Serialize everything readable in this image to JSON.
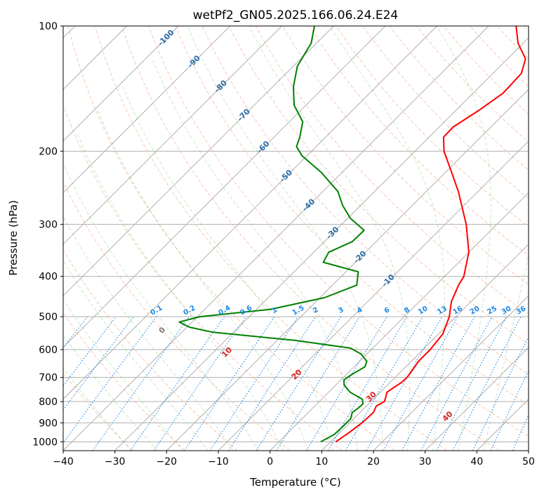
{
  "chart_data": {
    "type": "skew-t",
    "title": "wetPf2_GN05.2025.166.06.24.E24",
    "xlabel": "Temperature (°C)",
    "ylabel": "Pressure (hPa)",
    "xlim": [
      -40,
      50
    ],
    "ylim": [
      1050,
      100
    ],
    "y_scale": "log",
    "grid": true,
    "x_ticks": [
      -40,
      -30,
      -20,
      -10,
      0,
      10,
      20,
      30,
      40,
      50
    ],
    "y_ticks": [
      100,
      200,
      300,
      400,
      500,
      600,
      700,
      800,
      900,
      1000
    ],
    "isotherm_labels": [
      "-100",
      "-90",
      "-80",
      "-70",
      "-60",
      "-50",
      "-40",
      "-30",
      "-20",
      "-10"
    ],
    "mixing_ratio_labels": [
      "0.1",
      "0.2",
      "0.4",
      "0.6",
      "1",
      "1.5",
      "2",
      "3",
      "4",
      "6",
      "8",
      "10",
      "13",
      "16",
      "20",
      "25",
      "30",
      "36"
    ],
    "dry_adiabat_labels": [
      "0",
      "10",
      "20",
      "30",
      "40"
    ],
    "series": [
      {
        "color": "#ff0000",
        "points": [
          [
            1000,
            11.0
          ],
          [
            950,
            11.8
          ],
          [
            900,
            12.4
          ],
          [
            850,
            12.6
          ],
          [
            820,
            11.9
          ],
          [
            800,
            12.6
          ],
          [
            780,
            12.0
          ],
          [
            760,
            11.3
          ],
          [
            740,
            11.7
          ],
          [
            720,
            12.2
          ],
          [
            700,
            12.3
          ],
          [
            670,
            11.9
          ],
          [
            640,
            11.4
          ],
          [
            600,
            11.4
          ],
          [
            550,
            10.8
          ],
          [
            500,
            8.7
          ],
          [
            460,
            6.2
          ],
          [
            420,
            4.4
          ],
          [
            400,
            3.7
          ],
          [
            350,
            0.0
          ],
          [
            300,
            -5.9
          ],
          [
            250,
            -13.8
          ],
          [
            225,
            -18.8
          ],
          [
            200,
            -24.4
          ],
          [
            185,
            -27.2
          ],
          [
            175,
            -27.3
          ],
          [
            160,
            -25.6
          ],
          [
            145,
            -24.2
          ],
          [
            130,
            -24.5
          ],
          [
            120,
            -26.5
          ],
          [
            110,
            -31.0
          ],
          [
            100,
            -34.7
          ]
        ]
      },
      {
        "color": "#008000",
        "points": [
          [
            1000,
            8.1
          ],
          [
            960,
            9.3
          ],
          [
            920,
            9.4
          ],
          [
            880,
            9.4
          ],
          [
            850,
            8.5
          ],
          [
            830,
            8.8
          ],
          [
            810,
            8.9
          ],
          [
            790,
            7.9
          ],
          [
            760,
            4.2
          ],
          [
            730,
            1.6
          ],
          [
            710,
            0.6
          ],
          [
            690,
            1.0
          ],
          [
            660,
            2.1
          ],
          [
            640,
            1.4
          ],
          [
            615,
            -1.1
          ],
          [
            595,
            -4.3
          ],
          [
            570,
            -16.7
          ],
          [
            545,
            -34.0
          ],
          [
            530,
            -39.5
          ],
          [
            515,
            -42.5
          ],
          [
            500,
            -39.5
          ],
          [
            480,
            -27.3
          ],
          [
            450,
            -19.1
          ],
          [
            420,
            -15.3
          ],
          [
            390,
            -17.6
          ],
          [
            370,
            -26.2
          ],
          [
            350,
            -27.1
          ],
          [
            330,
            -24.6
          ],
          [
            310,
            -24.5
          ],
          [
            290,
            -29.5
          ],
          [
            270,
            -33.5
          ],
          [
            250,
            -37.1
          ],
          [
            225,
            -44.0
          ],
          [
            205,
            -51.0
          ],
          [
            195,
            -53.8
          ],
          [
            185,
            -55.0
          ],
          [
            170,
            -57.4
          ],
          [
            155,
            -62.3
          ],
          [
            140,
            -66.0
          ],
          [
            125,
            -69.2
          ],
          [
            110,
            -71.0
          ],
          [
            100,
            -73.7
          ]
        ]
      }
    ]
  }
}
